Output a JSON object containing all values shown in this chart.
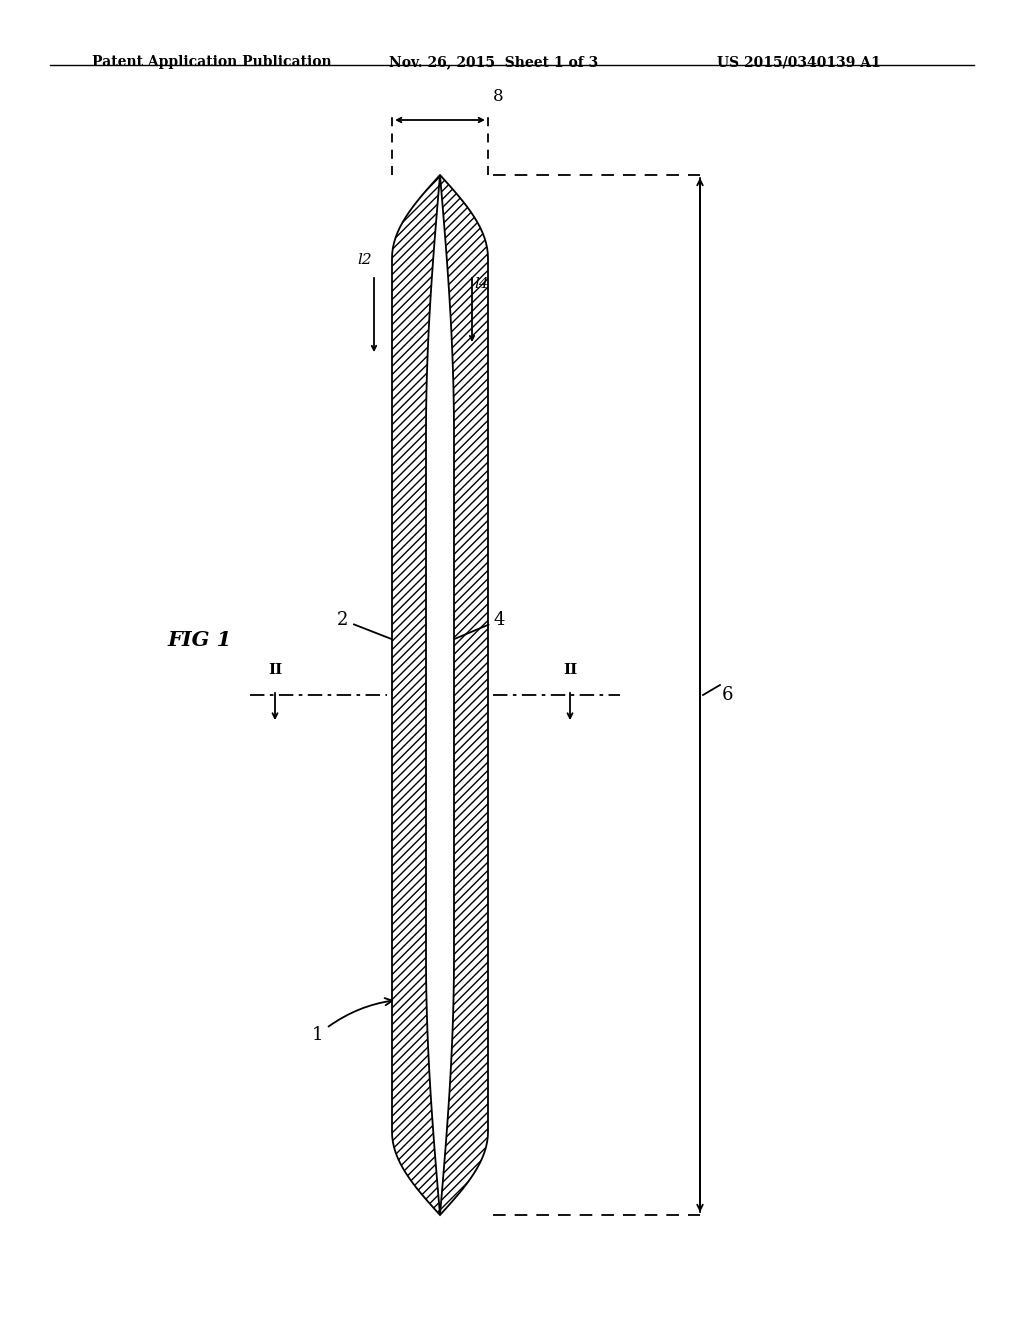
{
  "bg_color": "#ffffff",
  "header_text": "Patent Application Publication",
  "header_date": "Nov. 26, 2015  Sheet 1 of 3",
  "header_patent": "US 2015/0340139 A1",
  "fig_label": "FIG 1",
  "label_1": "1",
  "label_2": "2",
  "label_4": "4",
  "label_6": "6",
  "label_8": "8",
  "label_l2": "l2",
  "label_l4": "l4",
  "label_II": "II",
  "line_color": "#000000",
  "hatch_pattern": "////"
}
